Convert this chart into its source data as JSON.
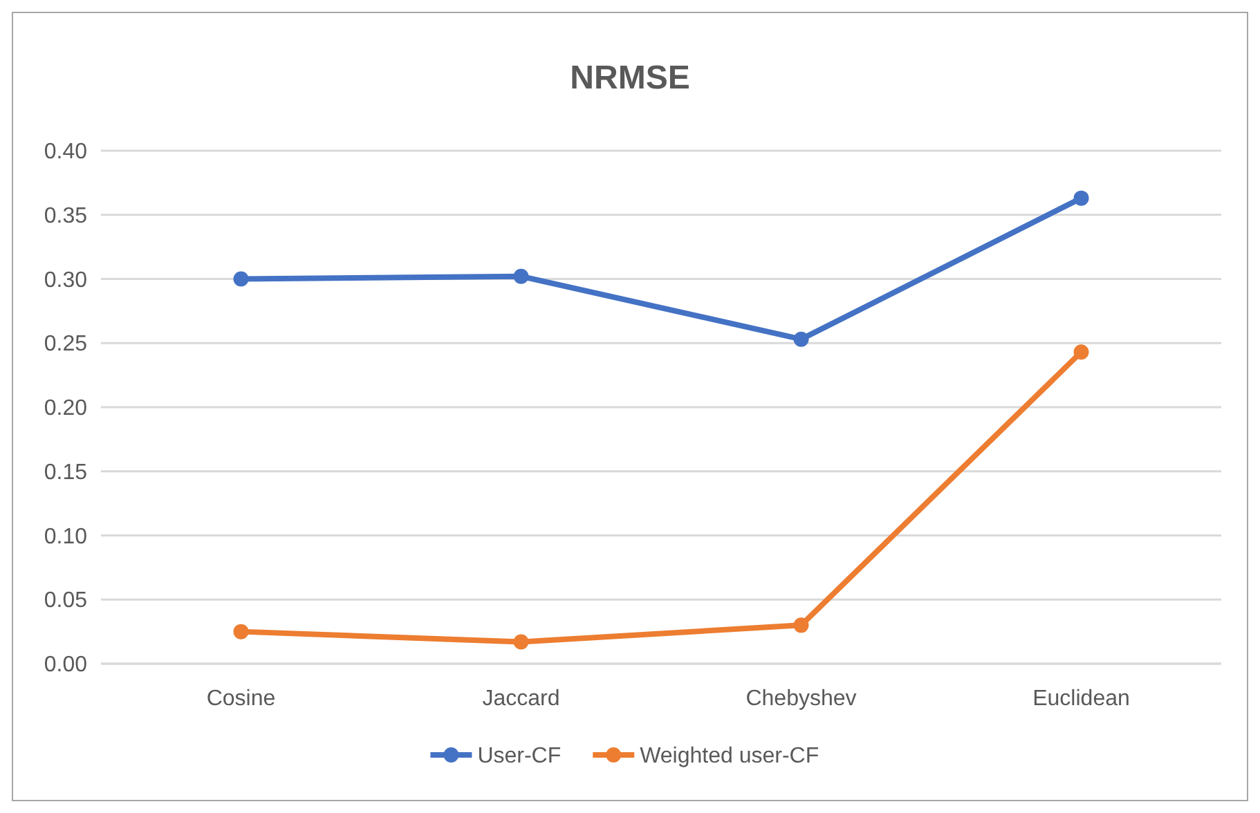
{
  "chart_data": {
    "type": "line",
    "title": "NRMSE",
    "categories": [
      "Cosine",
      "Jaccard",
      "Chebyshev",
      "Euclidean"
    ],
    "series": [
      {
        "name": "User-CF",
        "color": "#4472c4",
        "values": [
          0.3,
          0.302,
          0.253,
          0.363
        ]
      },
      {
        "name": "Weighted user-CF",
        "color": "#ed7d31",
        "values": [
          0.025,
          0.017,
          0.03,
          0.243
        ]
      }
    ],
    "ylim": [
      0,
      0.4
    ],
    "yticks": [
      {
        "value": 0,
        "label": "0.00"
      },
      {
        "value": 0.05,
        "label": "0.05"
      },
      {
        "value": 0.1,
        "label": "0.10"
      },
      {
        "value": 0.15,
        "label": "0.15"
      },
      {
        "value": 0.2,
        "label": "0.20"
      },
      {
        "value": 0.25,
        "label": "0.25"
      },
      {
        "value": 0.3,
        "label": "0.30"
      },
      {
        "value": 0.35,
        "label": "0.35"
      },
      {
        "value": 0.4,
        "label": "0.40"
      }
    ],
    "grid": "y",
    "legend": "bottom",
    "marker": "circle",
    "line_style": "solid"
  }
}
